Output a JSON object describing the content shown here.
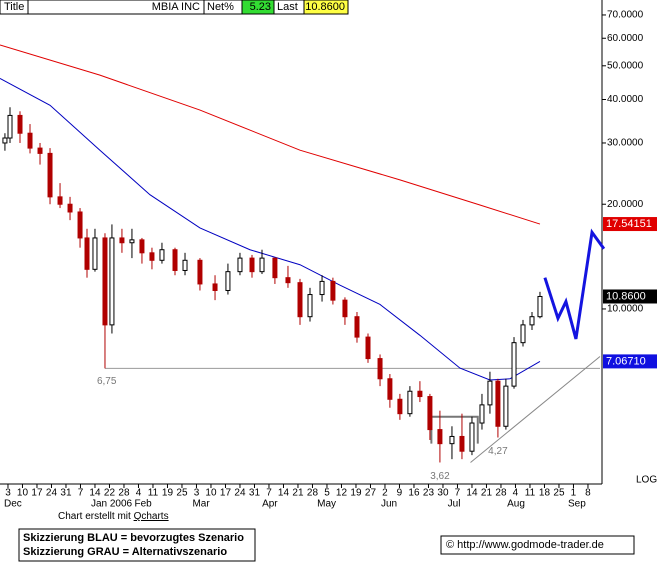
{
  "header": {
    "title_label": "Title",
    "symbol": "MBIA INC",
    "net_label": "Net%",
    "net": 5.23,
    "last_label": "Last",
    "last": "10.8600"
  },
  "chart_data": {
    "type": "candlestick",
    "log": true,
    "log_label": "LOG",
    "ylim": [
      3.16,
      73.3
    ],
    "yticks": [
      {
        "value": 70,
        "label": "70.0000"
      },
      {
        "value": 60,
        "label": "60.0000"
      },
      {
        "value": 50,
        "label": "50.0000"
      },
      {
        "value": 40,
        "label": "40.0000"
      },
      {
        "value": 30,
        "label": "30.0000"
      },
      {
        "value": 20,
        "label": "20.0000"
      },
      {
        "value": 10,
        "label": "10.0000"
      }
    ],
    "xlim": [
      -0.55,
      40.83
    ],
    "xticks": [
      {
        "value": 0,
        "label": "3"
      },
      {
        "value": 1,
        "label": "10"
      },
      {
        "value": 2,
        "label": "17"
      },
      {
        "value": 3,
        "label": "24"
      },
      {
        "value": 4,
        "label": "31"
      },
      {
        "value": 5,
        "label": "7"
      },
      {
        "value": 6,
        "label": "14"
      },
      {
        "value": 7,
        "label": "22"
      },
      {
        "value": 8,
        "label": "28"
      },
      {
        "value": 9,
        "label": "4"
      },
      {
        "value": 10,
        "label": "11"
      },
      {
        "value": 11,
        "label": "19"
      },
      {
        "value": 12,
        "label": "25"
      },
      {
        "value": 13,
        "label": "3"
      },
      {
        "value": 14,
        "label": "10"
      },
      {
        "value": 15,
        "label": "17"
      },
      {
        "value": 16,
        "label": "24"
      },
      {
        "value": 17,
        "label": "31"
      },
      {
        "value": 18,
        "label": "7"
      },
      {
        "value": 19,
        "label": "14"
      },
      {
        "value": 20,
        "label": "21"
      },
      {
        "value": 21,
        "label": "28"
      },
      {
        "value": 22,
        "label": "5"
      },
      {
        "value": 23,
        "label": "12"
      },
      {
        "value": 24,
        "label": "19"
      },
      {
        "value": 25,
        "label": "27"
      },
      {
        "value": 26,
        "label": "2"
      },
      {
        "value": 27,
        "label": "9"
      },
      {
        "value": 28,
        "label": "16"
      },
      {
        "value": 29,
        "label": "23"
      },
      {
        "value": 30,
        "label": "30"
      },
      {
        "value": 31,
        "label": "7"
      },
      {
        "value": 32,
        "label": "14"
      },
      {
        "value": 33,
        "label": "21"
      },
      {
        "value": 34,
        "label": "28"
      },
      {
        "value": 35,
        "label": "4"
      },
      {
        "value": 36,
        "label": "11"
      },
      {
        "value": 37,
        "label": "18"
      },
      {
        "value": 38,
        "label": "25"
      },
      {
        "value": 39,
        "label": "1"
      },
      {
        "value": 40,
        "label": "8"
      }
    ],
    "months": [
      {
        "value": 0,
        "label": "Dec"
      },
      {
        "value": 6,
        "label": "Jan 2006"
      },
      {
        "value": 9,
        "label": "Feb"
      },
      {
        "value": 13,
        "label": "Mar"
      },
      {
        "value": 17.8,
        "label": "Apr"
      },
      {
        "value": 21.6,
        "label": "May"
      },
      {
        "value": 26,
        "label": "Jun"
      },
      {
        "value": 30.6,
        "label": "Jul"
      },
      {
        "value": 34.7,
        "label": "Aug"
      },
      {
        "value": 38.9,
        "label": "Sep"
      }
    ],
    "candles": {
      "color_up": "#000000",
      "color_down": "#b00000",
      "last_label": "10.8600",
      "x": [
        -0.21,
        0.14,
        0.83,
        1.52,
        2.21,
        2.9,
        3.59,
        4.28,
        4.97,
        5.45,
        6.0,
        6.69,
        7.17,
        7.86,
        8.55,
        9.24,
        9.93,
        10.62,
        11.52,
        12.21,
        13.24,
        14.28,
        15.17,
        16.0,
        16.83,
        17.52,
        18.41,
        19.31,
        20.14,
        20.83,
        21.66,
        22.41,
        23.24,
        24.07,
        24.83,
        25.66,
        26.34,
        27.03,
        27.72,
        28.41,
        29.1,
        29.79,
        30.62,
        31.31,
        32.0,
        32.69,
        33.24,
        33.79,
        34.34,
        34.9,
        35.52,
        36.14,
        36.69
      ],
      "open": [
        30,
        31,
        36,
        32,
        29,
        28,
        21,
        20,
        19,
        16,
        13,
        16,
        9,
        16,
        15.5,
        15.8,
        14.5,
        13.8,
        14.8,
        12.9,
        13.8,
        11.8,
        11.3,
        12.8,
        14,
        12.8,
        14,
        12.3,
        11.9,
        9.5,
        11,
        12,
        10.6,
        9.5,
        8.3,
        7.2,
        6.3,
        5.5,
        5,
        5.8,
        5.6,
        4.5,
        4.1,
        4.3,
        3.9,
        4.7,
        5.3,
        6.2,
        4.6,
        6,
        8,
        9,
        9.5
      ],
      "high": [
        32,
        38,
        37,
        34,
        30,
        29,
        23,
        21,
        19.5,
        17,
        17,
        16.5,
        17.5,
        17,
        17,
        16,
        15,
        15.5,
        15,
        14.5,
        14,
        12.5,
        13.5,
        14.5,
        14.3,
        14.8,
        14,
        13.3,
        12.2,
        11.5,
        12.5,
        12.3,
        10.8,
        9.8,
        8.5,
        7.4,
        6.5,
        5.7,
        6,
        6.2,
        5.7,
        5.1,
        4.6,
        5,
        4.9,
        5.7,
        6.6,
        6.3,
        6.3,
        8.3,
        9.3,
        9.8,
        11.2
      ],
      "low": [
        28.5,
        30,
        30,
        28,
        26,
        20,
        19.5,
        18,
        15,
        12.3,
        12.8,
        6.75,
        8.5,
        14.5,
        14,
        13.5,
        13,
        13.5,
        12.5,
        12.5,
        11.3,
        10.6,
        11,
        12.5,
        12.3,
        12.6,
        11.8,
        11.5,
        9,
        9.2,
        10.5,
        10.3,
        9,
        8,
        7,
        6,
        5.2,
        4.8,
        4.9,
        5.4,
        4.2,
        3.62,
        3.7,
        3.7,
        3.8,
        4.5,
        5,
        4.27,
        4.5,
        5.9,
        7.8,
        8.7,
        9.4
      ],
      "close": [
        31,
        36,
        32,
        29,
        28,
        21,
        20,
        19,
        16,
        13,
        16,
        9,
        16,
        15.5,
        15.8,
        14.5,
        13.8,
        14.8,
        12.9,
        13.8,
        11.8,
        11.3,
        12.8,
        14,
        12.8,
        14,
        12.3,
        11.9,
        9.5,
        11,
        12,
        10.6,
        9.5,
        8.3,
        7.2,
        6.3,
        5.5,
        5,
        5.8,
        5.6,
        4.5,
        4.1,
        4.3,
        3.9,
        4.7,
        5.3,
        6.2,
        4.6,
        6,
        8,
        9,
        9.5,
        10.86
      ]
    },
    "moving_averages": [
      {
        "color": "#e00000",
        "label_bg": "#e00000",
        "last_label": "17.54151",
        "x": [
          -0.55,
          6.34,
          13.24,
          20.14,
          27.03,
          32.55,
          36.69
        ],
        "values": [
          57.4,
          47,
          37.3,
          28.6,
          23.5,
          19.9,
          17.54151
        ]
      },
      {
        "color": "#0000c0",
        "label_bg": "#1010e0",
        "last_label": "7.06710",
        "x": [
          -0.55,
          2.9,
          6.34,
          9.79,
          13.24,
          16.69,
          20.14,
          22.9,
          25.66,
          28.41,
          31.17,
          33.24,
          34.62,
          36.69
        ],
        "values": [
          46,
          38.5,
          28.6,
          21.3,
          17.1,
          14.8,
          13.4,
          11.7,
          10.3,
          8.4,
          6.76,
          6.25,
          6.3,
          7.0671
        ]
      }
    ],
    "support": {
      "value": 6.75,
      "x": [
        6.69,
        40.83
      ],
      "label": "6,75"
    },
    "annotations": [
      {
        "text": "3,62",
        "value": 3.62,
        "x": 29.79
      },
      {
        "text": "4,27",
        "value": 4.27,
        "x": 33.79
      }
    ],
    "range_box": {
      "x": [
        29.2,
        32.4
      ],
      "values": [
        4.9,
        4.1
      ],
      "color": "#777777"
    },
    "scenario_blue": {
      "color": "#1414e0",
      "x": [
        37.03,
        37.93,
        38.48,
        39.17,
        40.28,
        41.1
      ],
      "values": [
        12.3,
        9.4,
        10.5,
        8.2,
        16.6,
        14.9
      ]
    },
    "scenario_gray": {
      "color": "#888888",
      "x": [
        31.9,
        40.83
      ],
      "values": [
        3.62,
        7.3
      ]
    }
  },
  "footer": {
    "credit_prefix": "Chart erstellt mit",
    "credit_link": "Qcharts",
    "legend_lines": [
      "Skizzierung BLAU = bevorzugtes Szenario",
      "Skizzierung GRAU = Alternativszenario"
    ],
    "source": "© http://www.godmode-trader.de"
  }
}
